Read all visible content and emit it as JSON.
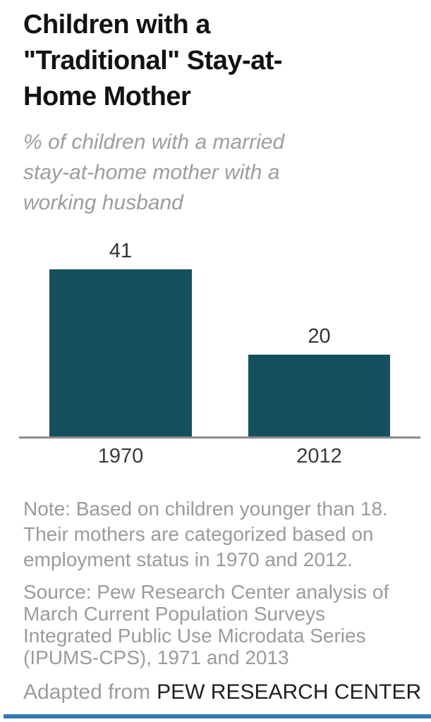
{
  "title": {
    "full": "Children with a \"Traditional\" Stay-at-Home Mother",
    "lines": [
      "Children with a",
      "\"Traditional\" Stay-at-",
      "Home Mother"
    ]
  },
  "subtitle": {
    "full": "% of children with a married stay-at-home mother with a working husband",
    "lines": [
      "% of children with a married",
      "stay-at-home mother with a",
      "working husband"
    ]
  },
  "chart_data": {
    "type": "bar",
    "orientation": "vertical",
    "categories": [
      "1970",
      "2012"
    ],
    "values": [
      41,
      20
    ],
    "value_labels": [
      "41",
      "20"
    ],
    "title": "Children with a \"Traditional\" Stay-at-Home Mother",
    "subtitle": "% of children with a married stay-at-home mother with a working husband",
    "xlabel": "",
    "ylabel": "",
    "ylim": [
      0,
      50
    ],
    "grid": false,
    "legend": false,
    "bar_color": "#15505f",
    "axis_line_color": "#8c8c8c"
  },
  "note": {
    "lines": [
      "Note: Based on children younger than 18.",
      "Their mothers are categorized based on",
      "employment status in 1970 and 2012."
    ]
  },
  "source": {
    "lines": [
      "Source: Pew Research Center analysis of",
      "March Current Population Surveys",
      "Integrated Public Use Microdata Series",
      "(IPUMS-CPS), 1971 and 2013"
    ]
  },
  "footer": {
    "prefix": "Adapted from",
    "brand": "PEW RESEARCH CENTER"
  },
  "colors": {
    "bar": "#15505f",
    "accent_rule": "#3579b5",
    "muted_text": "#9b9b9b",
    "title_text": "#121212"
  }
}
